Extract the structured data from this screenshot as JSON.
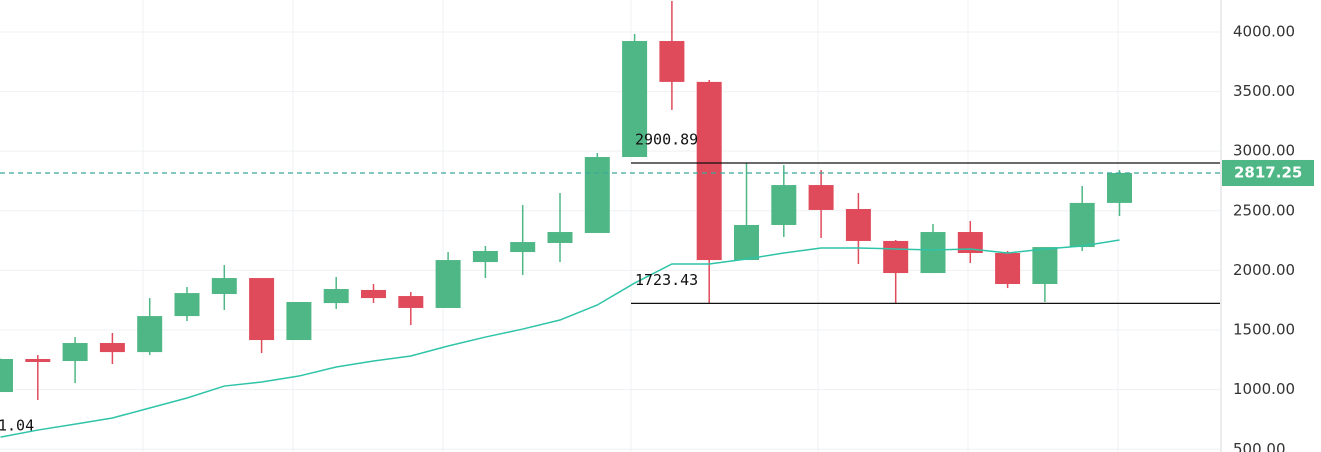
{
  "chart_data": {
    "type": "candlestick",
    "up_color": "#4fb785",
    "down_color": "#e04b5b",
    "ylim": [
      477,
      4268
    ],
    "yticks": [
      {
        "value": 500,
        "label": "500.00"
      },
      {
        "value": 1000,
        "label": "1000.00"
      },
      {
        "value": 1500,
        "label": "1500.00"
      },
      {
        "value": 2000,
        "label": "2000.00"
      },
      {
        "value": 2500,
        "label": "2500.00"
      },
      {
        "value": 3000,
        "label": "3000.00"
      },
      {
        "value": 3500,
        "label": "3500.00"
      },
      {
        "value": 4000,
        "label": "4000.00"
      }
    ],
    "grid": true,
    "open": [
      980,
      1257,
      1240,
      1391,
      1315,
      1617,
      1802,
      1936,
      1416,
      1726,
      1836,
      1785,
      1685,
      2070,
      2154,
      2230,
      2314,
      2951,
      3924,
      3581,
      2087,
      2381,
      2716,
      2515,
      2247,
      1978,
      2322,
      2146,
      1886,
      2196,
      2566
    ],
    "high": [
      1260,
      1290,
      1441,
      1475,
      1768,
      1861,
      2045,
      1936,
      1735,
      1945,
      1886,
      1819,
      2154,
      2205,
      2549,
      2649,
      2985,
      3983,
      4260,
      3597,
      2900.89,
      2884,
      2842,
      2649,
      2255,
      2389,
      2414,
      2163,
      2196,
      2708,
      2842
    ],
    "low": [
      980,
      913,
      1055,
      1215,
      1290,
      1575,
      1668,
      1307,
      1416,
      1676,
      1727,
      1542,
      1685,
      1936,
      1961,
      2070,
      2314,
      2951,
      3346,
      1723.43,
      2087,
      2280,
      2272,
      2054,
      1727,
      1978,
      2062,
      1852,
      1735,
      2163,
      2456
    ],
    "close": [
      1257,
      1232,
      1391,
      1315,
      1617,
      1810,
      1936,
      1416,
      1735,
      1844,
      1768,
      1685,
      2087,
      2163,
      2238,
      2322,
      2951,
      3924,
      3581,
      2087,
      2381,
      2716,
      2507,
      2247,
      1978,
      2322,
      2146,
      1886,
      2196,
      2566,
      2817.25
    ],
    "moving_average": {
      "color": "#2fc4a8",
      "values": [
        602,
        661,
        711,
        762,
        846,
        930,
        1030,
        1064,
        1114,
        1190,
        1240,
        1282,
        1366,
        1441,
        1508,
        1584,
        1710,
        1894,
        2054,
        2054,
        2096,
        2146,
        2188,
        2188,
        2180,
        2171,
        2180,
        2146,
        2180,
        2205,
        2255
      ]
    },
    "levels": [
      2900.89,
      1723.43
    ],
    "last_price": 2817.25,
    "cropped_label": "1.04"
  }
}
